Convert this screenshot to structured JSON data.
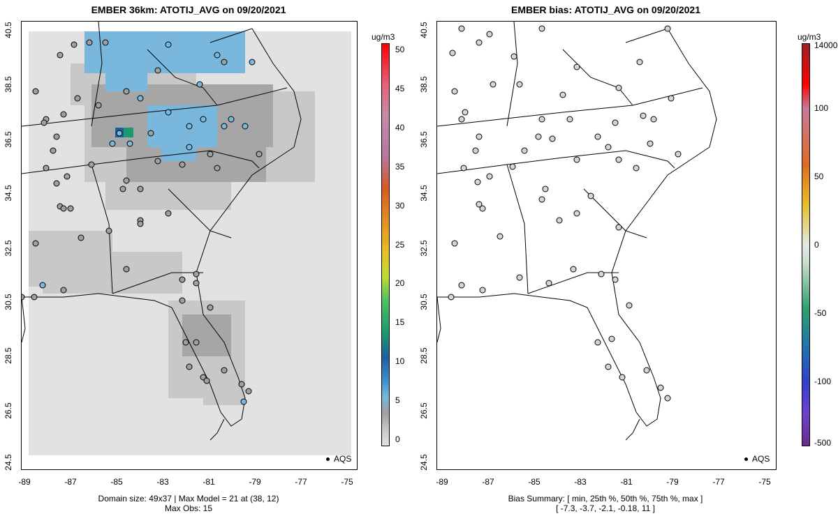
{
  "left": {
    "title": "EMBER 36km: ATOTIJ_AVG on 09/20/2021",
    "caption_line1": "Domain size: 49x37 | Max Model = 21 at (38, 12)",
    "caption_line2": "Max Obs: 15",
    "legend_label": "AQS",
    "colorbar": {
      "unit": "ug/m3",
      "labels": [
        "50",
        "45",
        "40",
        "35",
        "30",
        "25",
        "20",
        "15",
        "10",
        "5",
        "0"
      ]
    }
  },
  "right": {
    "title": "EMBER bias: ATOTIJ_AVG on 09/20/2021",
    "caption_line1": "Bias Summary: [ min, 25th %, 50th %, 75th %, max ]",
    "caption_line2": "[ -7.3,   -3.7,   -2.1,   -0.18,   11 ]",
    "legend_label": "AQS",
    "colorbar": {
      "unit": "ug/m3",
      "labels": [
        "14000",
        "100",
        "50",
        "0",
        "-50",
        "-100",
        "-500"
      ]
    }
  },
  "axes": {
    "y_ticks": [
      "40.5",
      "38.5",
      "36.5",
      "34.5",
      "32.5",
      "30.5",
      "28.5",
      "26.5",
      "24.5"
    ],
    "x_ticks": [
      "-89",
      "-87",
      "-85",
      "-83",
      "-81",
      "-79",
      "-77",
      "-75"
    ]
  },
  "chart_data": {
    "type": "map",
    "lat_range": [
      24.5,
      40.5
    ],
    "lon_range": [
      -89,
      -75
    ],
    "left_colorbar_range": [
      0,
      50
    ],
    "right_colorbar_ticks": [
      14000,
      100,
      50,
      0,
      -50,
      -100,
      -500
    ],
    "bias_summary": {
      "min": -7.3,
      "p25": -3.7,
      "p50": -2.1,
      "p75": -0.18,
      "max": 11
    }
  }
}
